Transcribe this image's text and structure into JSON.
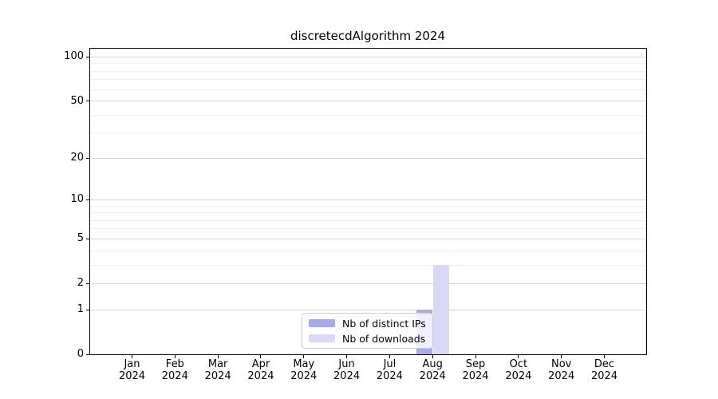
{
  "title": "discretecdAlgorithm 2024",
  "chart_data": {
    "type": "bar",
    "categories": [
      "Jan 2024",
      "Feb 2024",
      "Mar 2024",
      "Apr 2024",
      "May 2024",
      "Jun 2024",
      "Jul 2024",
      "Aug 2024",
      "Sep 2024",
      "Oct 2024",
      "Nov 2024",
      "Dec 2024"
    ],
    "x_tick_line1": [
      "Jan",
      "Feb",
      "Mar",
      "Apr",
      "May",
      "Jun",
      "Jul",
      "Aug",
      "Sep",
      "Oct",
      "Nov",
      "Dec"
    ],
    "x_tick_line2": "2024",
    "series": [
      {
        "name": "Nb of distinct IPs",
        "color": "#a9a9ee",
        "values": [
          0,
          0,
          0,
          0,
          0,
          0,
          0,
          1,
          0,
          0,
          0,
          0
        ]
      },
      {
        "name": "Nb of downloads",
        "color": "#d9d9f7",
        "values": [
          0,
          0,
          0,
          0,
          0,
          0,
          0,
          3,
          0,
          0,
          0,
          0
        ]
      }
    ],
    "yscale": "log1p",
    "ylim": [
      0,
      114
    ],
    "y_major_ticks": [
      0,
      1,
      2,
      5,
      10,
      20,
      50,
      100
    ],
    "y_minor_ticks": [
      3,
      4,
      6,
      7,
      8,
      9,
      30,
      40,
      60,
      70,
      80,
      90
    ],
    "grid": true,
    "legend_position": "lower center"
  },
  "colors": {
    "major_grid": "#d4d4d4",
    "minor_grid": "#efefef",
    "spine": "#000000",
    "text": "#000000",
    "legend_border": "#cccccc"
  }
}
